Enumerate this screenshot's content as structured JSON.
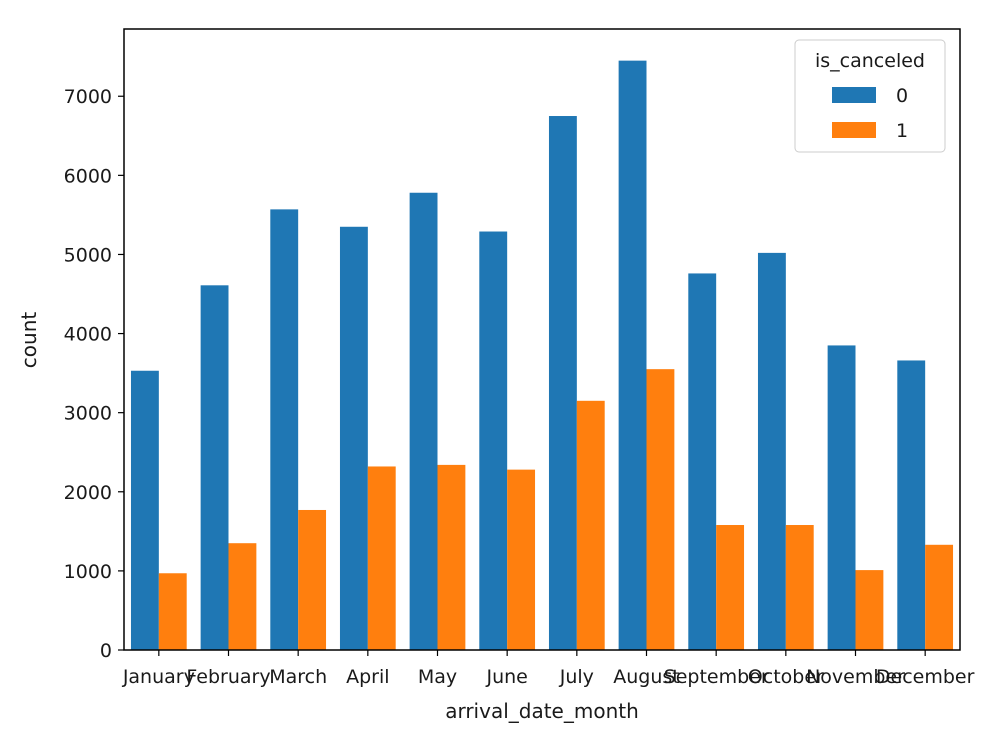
{
  "chart_data": {
    "type": "bar",
    "title": "",
    "xlabel": "arrival_date_month",
    "ylabel": "count",
    "categories": [
      "January",
      "February",
      "March",
      "April",
      "May",
      "June",
      "July",
      "August",
      "September",
      "October",
      "November",
      "December"
    ],
    "series": [
      {
        "name": "0",
        "color": "#1f77b4",
        "values": [
          3530,
          4610,
          5570,
          5350,
          5780,
          5290,
          6750,
          7450,
          4760,
          5020,
          3850,
          3660
        ]
      },
      {
        "name": "1",
        "color": "#ff7f0e",
        "values": [
          970,
          1350,
          1770,
          2320,
          2340,
          2280,
          3150,
          3550,
          1580,
          1580,
          1010,
          1330
        ]
      }
    ],
    "ylim": [
      0,
      7850
    ],
    "yticks": [
      0,
      1000,
      2000,
      3000,
      4000,
      5000,
      6000,
      7000
    ],
    "legend": {
      "title": "is_canceled",
      "position": "top-right"
    },
    "grid": false
  }
}
